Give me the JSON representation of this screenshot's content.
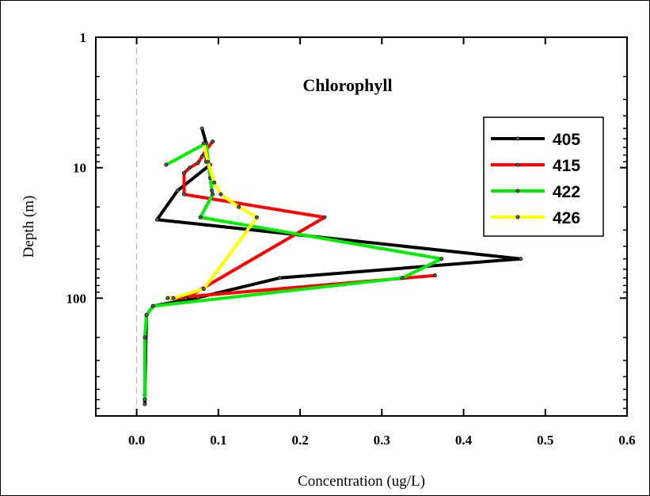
{
  "chart_data": {
    "type": "line",
    "title": "Chlorophyll",
    "xlabel": "Concentration (ug/L)",
    "ylabel": "Depth (m)",
    "xlim": [
      -0.05,
      0.6
    ],
    "ylim": [
      1,
      800
    ],
    "yscale": "log",
    "y_inverted": true,
    "x_ticks": [
      0.0,
      0.1,
      0.2,
      0.3,
      0.4,
      0.5,
      0.6
    ],
    "x_tick_labels": [
      "0.0",
      "0.1",
      "0.2",
      "0.3",
      "0.4",
      "0.5",
      "0.6"
    ],
    "y_ticks": [
      1,
      10,
      100
    ],
    "y_tick_labels": [
      "1",
      "10",
      "100"
    ],
    "zero_reference_line": true,
    "grid": false,
    "legend_position": "right",
    "series": [
      {
        "name": "405",
        "color": "#000000",
        "x": [
          0.08,
          0.085,
          0.085,
          0.085,
          0.09,
          0.05,
          0.025,
          0.47,
          0.175,
          0.075,
          0.02,
          0.012,
          0.012,
          0.01,
          0.01,
          0.01
        ],
        "y": [
          5,
          6.5,
          7.5,
          9,
          9.5,
          15,
          25,
          50,
          70,
          99,
          115,
          135,
          135,
          550,
          600,
          650
        ]
      },
      {
        "name": "415",
        "color": "#ff0000",
        "x": [
          0.093,
          0.085,
          0.08,
          0.075,
          0.065,
          0.058,
          0.058,
          0.23,
          0.06,
          0.042,
          0.365
        ],
        "y": [
          6.3,
          7.3,
          8.2,
          9.2,
          10,
          11,
          16,
          24,
          100,
          100,
          67
        ]
      },
      {
        "name": "422",
        "color": "#00ee00",
        "x": [
          0.036,
          0.085,
          0.09,
          0.092,
          0.093,
          0.078,
          0.373,
          0.325,
          0.02,
          0.012,
          0.01,
          0.01
        ],
        "y": [
          9.5,
          6.5,
          12,
          15,
          16,
          24,
          50,
          70,
          115,
          135,
          200,
          600
        ]
      },
      {
        "name": "426",
        "color": "#ffff00",
        "x": [
          0.082,
          0.087,
          0.095,
          0.103,
          0.125,
          0.147,
          0.082,
          0.045,
          0.038
        ],
        "y": [
          6.5,
          9,
          13,
          16,
          20,
          24,
          85,
          100,
          100
        ]
      }
    ]
  }
}
